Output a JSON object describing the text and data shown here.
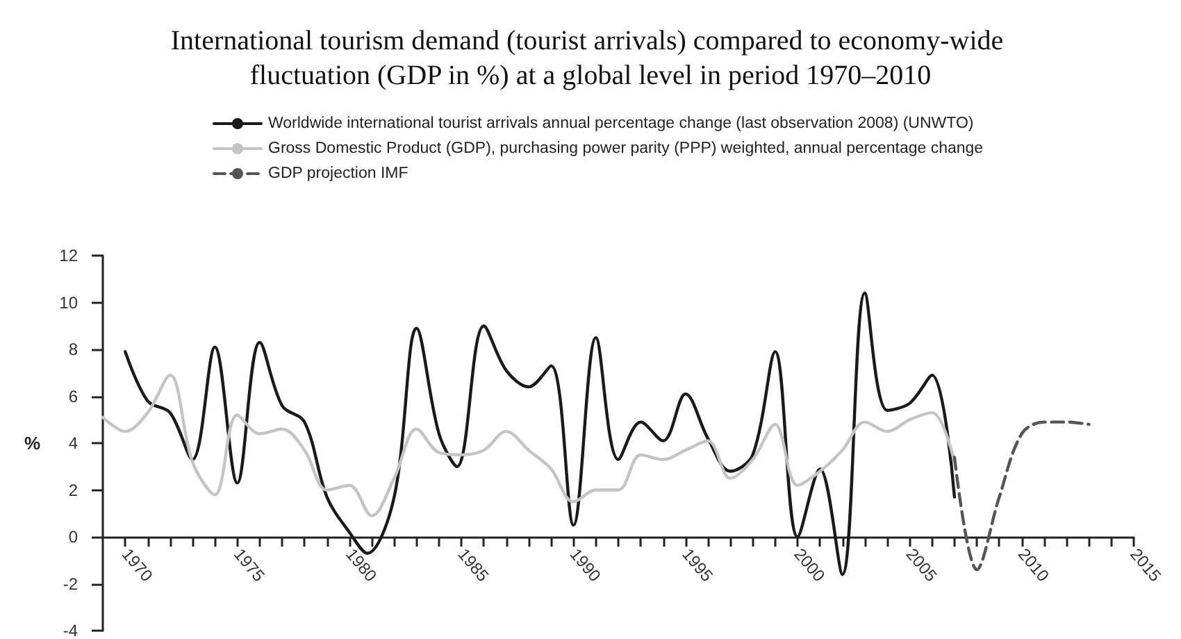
{
  "chart_data": {
    "type": "line",
    "title": "International tourism demand (tourist arrivals) compared to economy-wide fluctuation (GDP in %) at a global level in period 1970–2010",
    "ylabel": "%",
    "series": [
      {
        "name": "Worldwide international tourist arrivals annual percentage change (last observation 2008) (UNWTO)",
        "color": "#1a1a1a",
        "line_style": "solid",
        "x": [
          1970,
          1971,
          1972,
          1973,
          1974,
          1975,
          1976,
          1977,
          1978,
          1979,
          1980,
          1980.8,
          1982,
          1983,
          1984,
          1984.8,
          1986,
          1987,
          1988,
          1989,
          1990,
          1991,
          1992,
          1993,
          1994,
          1995,
          1996,
          1997,
          1998,
          1999,
          2000,
          2001,
          2002,
          2003,
          2004,
          2005,
          2006,
          2007
        ],
        "values": [
          7.9,
          5.8,
          5.3,
          3.3,
          8.1,
          2.3,
          8.3,
          5.6,
          4.9,
          1.7,
          0.2,
          -0.7,
          1.7,
          8.9,
          4.4,
          3.0,
          9.0,
          7.1,
          6.4,
          7.3,
          0.5,
          8.5,
          3.3,
          4.9,
          4.1,
          6.1,
          4.2,
          2.8,
          3.5,
          7.9,
          0.0,
          2.9,
          -1.6,
          10.4,
          5.4,
          5.7,
          6.9,
          1.7
        ]
      },
      {
        "name": "Gross Domestic Product (GDP), purchasing power parity (PPP) weighted, annual percentage change",
        "color": "#c4c4c4",
        "line_style": "solid",
        "x": [
          1969,
          1970,
          1971,
          1972,
          1973,
          1974,
          1975,
          1976,
          1977,
          1978,
          1979,
          1980,
          1981,
          1982,
          1983,
          1984,
          1985,
          1986,
          1987,
          1988,
          1989,
          1990,
          1991,
          1992,
          1993,
          1994,
          1995,
          1996,
          1997,
          1998,
          1999,
          2000,
          2001,
          2002,
          2003,
          2004,
          2005,
          2006,
          2007
        ],
        "values": [
          5.1,
          4.5,
          5.3,
          6.9,
          3.2,
          1.8,
          5.2,
          4.4,
          4.6,
          3.7,
          2.0,
          2.2,
          0.9,
          2.5,
          4.6,
          3.6,
          3.5,
          3.7,
          4.5,
          3.7,
          2.9,
          1.5,
          2.0,
          2.0,
          3.5,
          3.3,
          3.7,
          4.1,
          2.5,
          3.3,
          4.8,
          2.2,
          2.8,
          3.7,
          4.9,
          4.5,
          5.0,
          5.3,
          3.2
        ]
      },
      {
        "name": "GDP projection IMF",
        "color": "#555555",
        "line_style": "dashed",
        "x": [
          2007,
          2008,
          2009,
          2010,
          2011,
          2012,
          2013
        ],
        "values": [
          3.4,
          -1.4,
          1.7,
          4.4,
          4.9,
          4.9,
          4.8
        ]
      }
    ],
    "xlim": [
      1969,
      2015
    ],
    "xticks": [
      1970,
      {
        "value": 1971,
        "label": null
      },
      {
        "value": 1972,
        "label": null
      },
      {
        "value": 1973,
        "label": null
      },
      {
        "value": 1974,
        "label": null
      },
      1975,
      {
        "value": 1976,
        "label": null
      },
      {
        "value": 1977,
        "label": null
      },
      {
        "value": 1978,
        "label": null
      },
      {
        "value": 1979,
        "label": null
      },
      1980,
      {
        "value": 1981,
        "label": null
      },
      {
        "value": 1982,
        "label": null
      },
      {
        "value": 1983,
        "label": null
      },
      {
        "value": 1984,
        "label": null
      },
      1985,
      {
        "value": 1986,
        "label": null
      },
      {
        "value": 1987,
        "label": null
      },
      {
        "value": 1988,
        "label": null
      },
      {
        "value": 1989,
        "label": null
      },
      1990,
      {
        "value": 1991,
        "label": null
      },
      {
        "value": 1992,
        "label": null
      },
      {
        "value": 1993,
        "label": null
      },
      {
        "value": 1994,
        "label": null
      },
      1995,
      {
        "value": 1996,
        "label": null
      },
      {
        "value": 1997,
        "label": null
      },
      {
        "value": 1998,
        "label": null
      },
      {
        "value": 1999,
        "label": null
      },
      2000,
      {
        "value": 2001,
        "label": null
      },
      {
        "value": 2002,
        "label": null
      },
      {
        "value": 2003,
        "label": null
      },
      {
        "value": 2004,
        "label": null
      },
      2005,
      {
        "value": 2006,
        "label": null
      },
      {
        "value": 2007,
        "label": null
      },
      {
        "value": 2008,
        "label": null
      },
      {
        "value": 2009,
        "label": null
      },
      2010,
      {
        "value": 2011,
        "label": null
      },
      {
        "value": 2012,
        "label": null
      },
      {
        "value": 2013,
        "label": null
      },
      {
        "value": 2014,
        "label": null
      },
      2015
    ],
    "ylim": [
      -4,
      12
    ],
    "yticks": [
      -4,
      -2,
      0,
      2,
      4,
      6,
      8,
      10,
      12
    ],
    "grid": false,
    "legend": "top",
    "marker": "none"
  }
}
